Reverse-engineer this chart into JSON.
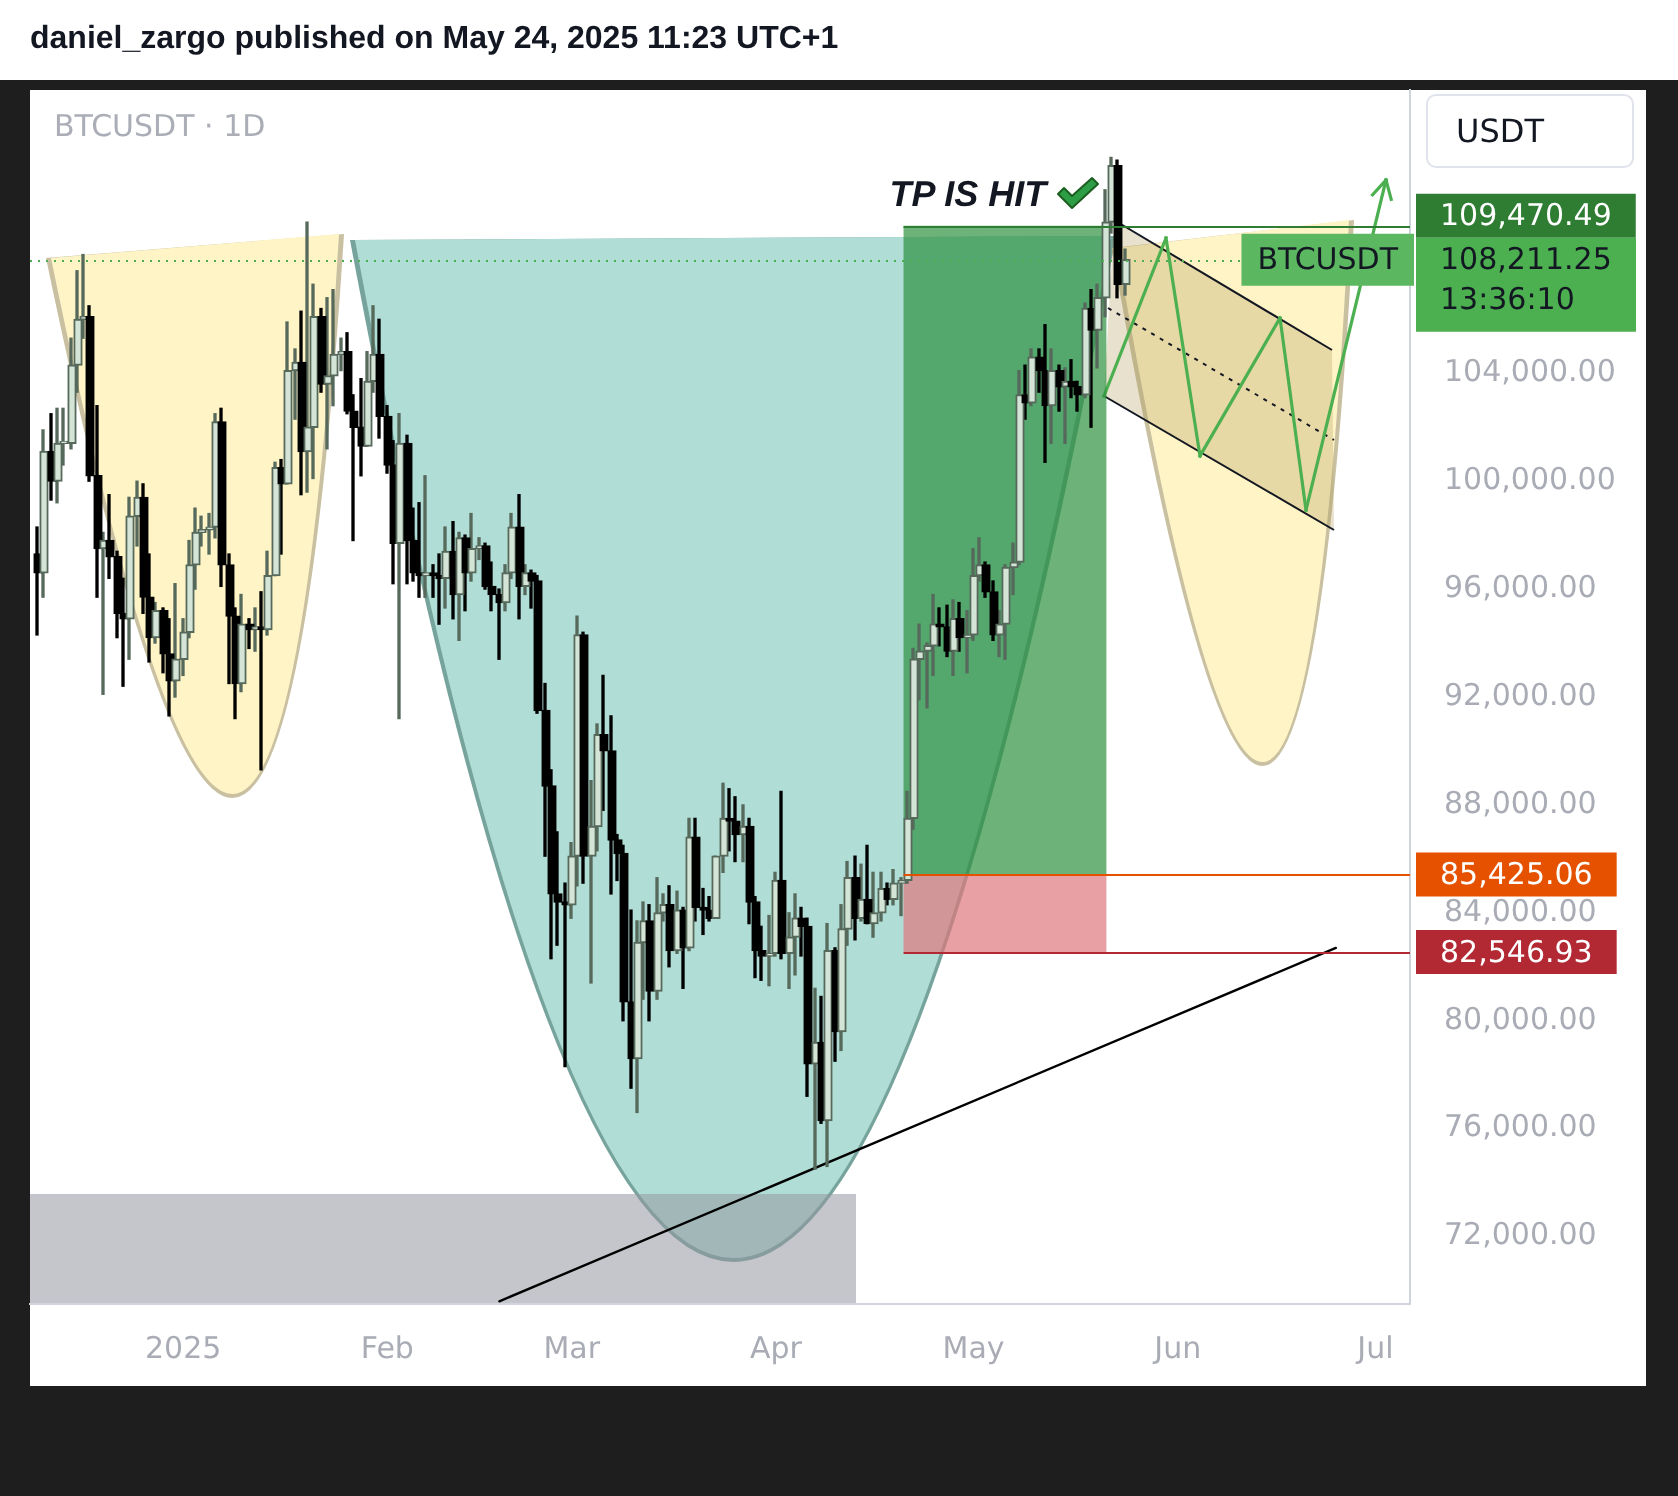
{
  "chart_data": {
    "type": "candlestick",
    "title": "BTCUSDT · 1D",
    "ylabel": "USDT",
    "annotations": [
      "TP IS HIT",
      "13:36:10",
      "daniel_zargo published on May 24, 2025 11:23 UTC+1"
    ],
    "series": [
      {
        "name": "BTCUSDT",
        "x": [
          "2024-12-10",
          "2024-12-11",
          "2024-12-12",
          "2024-12-13",
          "2024-12-14",
          "2024-12-15",
          "2024-12-16",
          "2024-12-17",
          "2024-12-18",
          "2024-12-19",
          "2024-12-20",
          "2024-12-21",
          "2024-12-22",
          "2024-12-23",
          "2024-12-24",
          "2024-12-25",
          "2024-12-26",
          "2024-12-27",
          "2024-12-28",
          "2024-12-29",
          "2024-12-30",
          "2024-12-31",
          "2025-01-01",
          "2025-01-02",
          "2025-01-03",
          "2025-01-04",
          "2025-01-05",
          "2025-01-06",
          "2025-01-07",
          "2025-01-08",
          "2025-01-09",
          "2025-01-10",
          "2025-01-11",
          "2025-01-12",
          "2025-01-13",
          "2025-01-14",
          "2025-01-15",
          "2025-01-16",
          "2025-01-17",
          "2025-01-18",
          "2025-01-19",
          "2025-01-20",
          "2025-01-21",
          "2025-01-22",
          "2025-01-23",
          "2025-01-24",
          "2025-01-25",
          "2025-01-26",
          "2025-01-27",
          "2025-01-28",
          "2025-01-29",
          "2025-01-30",
          "2025-01-31",
          "2025-02-01",
          "2025-02-02",
          "2025-02-03",
          "2025-02-04",
          "2025-02-05",
          "2025-02-06",
          "2025-02-07",
          "2025-02-08",
          "2025-02-09",
          "2025-02-10",
          "2025-02-11",
          "2025-02-12",
          "2025-02-13",
          "2025-02-14",
          "2025-02-15",
          "2025-02-16",
          "2025-02-17",
          "2025-02-18",
          "2025-02-19",
          "2025-02-20",
          "2025-02-21",
          "2025-02-22",
          "2025-02-23",
          "2025-02-24",
          "2025-02-25",
          "2025-02-26",
          "2025-02-27",
          "2025-02-28",
          "2025-03-01",
          "2025-03-02",
          "2025-03-03",
          "2025-03-04",
          "2025-03-05",
          "2025-03-06",
          "2025-03-07",
          "2025-03-08",
          "2025-03-09",
          "2025-03-10",
          "2025-03-11",
          "2025-03-12",
          "2025-03-13",
          "2025-03-14",
          "2025-03-15",
          "2025-03-16",
          "2025-03-17",
          "2025-03-18",
          "2025-03-19",
          "2025-03-20",
          "2025-03-21",
          "2025-03-22",
          "2025-03-23",
          "2025-03-24",
          "2025-03-25",
          "2025-03-26",
          "2025-03-27",
          "2025-03-28",
          "2025-03-29",
          "2025-03-30",
          "2025-03-31",
          "2025-04-01",
          "2025-04-02",
          "2025-04-03",
          "2025-04-04",
          "2025-04-05",
          "2025-04-06",
          "2025-04-07",
          "2025-04-08",
          "2025-04-09",
          "2025-04-10",
          "2025-04-11",
          "2025-04-12",
          "2025-04-13",
          "2025-04-14",
          "2025-04-15",
          "2025-04-16",
          "2025-04-17",
          "2025-04-18",
          "2025-04-19",
          "2025-04-20",
          "2025-04-21",
          "2025-04-22",
          "2025-04-23",
          "2025-04-24",
          "2025-04-25",
          "2025-04-26",
          "2025-04-27",
          "2025-04-28",
          "2025-04-29",
          "2025-04-30",
          "2025-05-01",
          "2025-05-02",
          "2025-05-03",
          "2025-05-04",
          "2025-05-05",
          "2025-05-06",
          "2025-05-07",
          "2025-05-08",
          "2025-05-09",
          "2025-05-10",
          "2025-05-11",
          "2025-05-12",
          "2025-05-13",
          "2025-05-14",
          "2025-05-15",
          "2025-05-16",
          "2025-05-17",
          "2025-05-18",
          "2025-05-19",
          "2025-05-20",
          "2025-05-21",
          "2025-05-22",
          "2025-05-23",
          "2025-05-24"
        ],
        "ohlc": [
          [
            97300,
            98300,
            94300,
            96600
          ],
          [
            96600,
            101900,
            95700,
            101100
          ],
          [
            101100,
            102500,
            99300,
            100000
          ],
          [
            100000,
            102700,
            99200,
            101400
          ],
          [
            101400,
            102700,
            100600,
            101400
          ],
          [
            101400,
            105300,
            101200,
            104300
          ],
          [
            104300,
            107800,
            103300,
            106000
          ],
          [
            106000,
            108400,
            105300,
            106100
          ],
          [
            106100,
            106500,
            100000,
            100200
          ],
          [
            100200,
            102800,
            95700,
            97500
          ],
          [
            97500,
            98100,
            92100,
            97800
          ],
          [
            97800,
            99500,
            96400,
            97200
          ],
          [
            97200,
            97400,
            94200,
            95100
          ],
          [
            95100,
            96400,
            92400,
            94900
          ],
          [
            94900,
            99400,
            93400,
            98700
          ],
          [
            98700,
            100000,
            97600,
            99400
          ],
          [
            99400,
            99900,
            95100,
            95700
          ],
          [
            95700,
            97300,
            93300,
            94200
          ],
          [
            94200,
            95500,
            94000,
            95200
          ],
          [
            95200,
            95300,
            92900,
            93600
          ],
          [
            93600,
            94900,
            91300,
            92600
          ],
          [
            92600,
            96200,
            92000,
            93400
          ],
          [
            93400,
            94900,
            92800,
            94400
          ],
          [
            94400,
            97800,
            94200,
            96900
          ],
          [
            96900,
            99000,
            96000,
            98100
          ],
          [
            98100,
            98700,
            97600,
            98200
          ],
          [
            98200,
            98800,
            97300,
            98300
          ],
          [
            98300,
            102500,
            97900,
            102200
          ],
          [
            102200,
            102700,
            96100,
            96900
          ],
          [
            96900,
            97300,
            92500,
            95000
          ],
          [
            95000,
            95300,
            91200,
            92500
          ],
          [
            92500,
            95800,
            92200,
            94700
          ],
          [
            94700,
            94900,
            93800,
            94500
          ],
          [
            94500,
            95300,
            93700,
            94600
          ],
          [
            94600,
            95900,
            89300,
            94500
          ],
          [
            94500,
            97400,
            94300,
            96500
          ],
          [
            96500,
            100700,
            96500,
            100500
          ],
          [
            100500,
            100800,
            97300,
            99900
          ],
          [
            99900,
            105900,
            99900,
            104100
          ],
          [
            104100,
            104900,
            102300,
            104400
          ],
          [
            104400,
            106300,
            99500,
            101100
          ],
          [
            101100,
            109600,
            99600,
            102000
          ],
          [
            102000,
            107300,
            100100,
            106100
          ],
          [
            106100,
            106400,
            103300,
            103600
          ],
          [
            103600,
            106800,
            101200,
            103900
          ],
          [
            103900,
            107100,
            102800,
            104700
          ],
          [
            104700,
            105300,
            104100,
            104800
          ],
          [
            104800,
            105500,
            102500,
            102600
          ],
          [
            102600,
            103200,
            97800,
            102000
          ],
          [
            102000,
            103800,
            100200,
            101300
          ],
          [
            101300,
            104800,
            101300,
            103700
          ],
          [
            103700,
            106500,
            103300,
            104700
          ],
          [
            104700,
            106000,
            101600,
            102400
          ],
          [
            102400,
            102800,
            100300,
            100600
          ],
          [
            100600,
            101500,
            96200,
            97700
          ],
          [
            97700,
            102500,
            91200,
            101400
          ],
          [
            101400,
            101700,
            96200,
            97800
          ],
          [
            97800,
            99000,
            96300,
            96600
          ],
          [
            96600,
            99200,
            95700,
            96500
          ],
          [
            96500,
            100200,
            95700,
            96600
          ],
          [
            96600,
            96900,
            95700,
            96500
          ],
          [
            96500,
            97300,
            94700,
            96400
          ],
          [
            96400,
            98300,
            95300,
            97400
          ],
          [
            97400,
            98500,
            94900,
            95800
          ],
          [
            95800,
            98100,
            94100,
            97900
          ],
          [
            97900,
            98000,
            95200,
            96600
          ],
          [
            96600,
            98800,
            96300,
            97500
          ],
          [
            97500,
            97900,
            97100,
            97600
          ],
          [
            97600,
            97700,
            96000,
            96100
          ],
          [
            96100,
            97000,
            95200,
            95800
          ],
          [
            95800,
            96000,
            93400,
            95500
          ],
          [
            95500,
            96900,
            95200,
            96600
          ],
          [
            96600,
            98800,
            96400,
            98300
          ],
          [
            98300,
            99500,
            94900,
            96100
          ],
          [
            96100,
            96900,
            95800,
            96600
          ],
          [
            96600,
            96700,
            95300,
            96300
          ],
          [
            96300,
            96500,
            91400,
            91500
          ],
          [
            91500,
            92500,
            86100,
            88700
          ],
          [
            88700,
            89300,
            82300,
            84700
          ],
          [
            84700,
            87000,
            82800,
            84400
          ],
          [
            84400,
            85100,
            78300,
            84300
          ],
          [
            84300,
            86600,
            83800,
            86100
          ],
          [
            86100,
            95000,
            85000,
            94300
          ],
          [
            94300,
            94400,
            85100,
            86100
          ],
          [
            86100,
            88900,
            81400,
            87200
          ],
          [
            87200,
            91000,
            86300,
            90600
          ],
          [
            90600,
            92800,
            87800,
            90000
          ],
          [
            90000,
            91300,
            84700,
            86700
          ],
          [
            86700,
            86900,
            85200,
            86200
          ],
          [
            86200,
            86500,
            80000,
            80700
          ],
          [
            80700,
            84100,
            77500,
            78600
          ],
          [
            78600,
            83700,
            76600,
            82900
          ],
          [
            82900,
            84400,
            80800,
            83700
          ],
          [
            83700,
            84300,
            80000,
            81100
          ],
          [
            81100,
            85300,
            80800,
            84000
          ],
          [
            84000,
            84700,
            83700,
            84300
          ],
          [
            84300,
            85000,
            82000,
            82600
          ],
          [
            82600,
            84800,
            82500,
            84100
          ],
          [
            84100,
            84200,
            81200,
            82700
          ],
          [
            82700,
            87500,
            82600,
            86800
          ],
          [
            86800,
            87500,
            83700,
            84200
          ],
          [
            84200,
            84900,
            83200,
            84100
          ],
          [
            84100,
            84600,
            83700,
            83800
          ],
          [
            83800,
            86100,
            83800,
            86100
          ],
          [
            86100,
            88800,
            85500,
            87500
          ],
          [
            87500,
            88600,
            86300,
            87400
          ],
          [
            87400,
            88300,
            85900,
            86900
          ],
          [
            86900,
            88000,
            85900,
            87200
          ],
          [
            87200,
            87500,
            83600,
            84400
          ],
          [
            84400,
            84600,
            81600,
            82600
          ],
          [
            82600,
            83500,
            81500,
            82400
          ],
          [
            82400,
            83900,
            81300,
            82500
          ],
          [
            82500,
            85500,
            82400,
            85200
          ],
          [
            85200,
            88500,
            82300,
            82500
          ],
          [
            82500,
            84000,
            81200,
            83100
          ],
          [
            83100,
            84700,
            81700,
            83800
          ],
          [
            83800,
            84200,
            82400,
            83500
          ],
          [
            83500,
            83800,
            77200,
            78400
          ],
          [
            78400,
            81200,
            74500,
            79200
          ],
          [
            79200,
            80900,
            76200,
            76300
          ],
          [
            76300,
            83600,
            74600,
            82600
          ],
          [
            82600,
            82700,
            78500,
            79600
          ],
          [
            79600,
            84300,
            78900,
            83400
          ],
          [
            83400,
            85900,
            82800,
            85300
          ],
          [
            85300,
            86100,
            83000,
            83800
          ],
          [
            83800,
            85800,
            83700,
            84500
          ],
          [
            84500,
            86500,
            83600,
            83600
          ],
          [
            83600,
            85500,
            83100,
            84000
          ],
          [
            84000,
            85500,
            83700,
            84900
          ],
          [
            84900,
            85100,
            84300,
            84500
          ],
          [
            84500,
            85600,
            84300,
            85100
          ],
          [
            85100,
            85300,
            83900,
            85200
          ],
          [
            85200,
            88500,
            85100,
            87500
          ],
          [
            87500,
            93800,
            87100,
            93400
          ],
          [
            93400,
            94700,
            91900,
            93700
          ],
          [
            93700,
            94000,
            91600,
            93900
          ],
          [
            93900,
            95800,
            92800,
            94700
          ],
          [
            94700,
            95300,
            93900,
            94600
          ],
          [
            94600,
            95400,
            93500,
            93700
          ],
          [
            93700,
            95600,
            92800,
            94900
          ],
          [
            94900,
            95500,
            93700,
            94200
          ],
          [
            94200,
            95200,
            92900,
            94300
          ],
          [
            94300,
            97500,
            94100,
            96500
          ],
          [
            96500,
            97900,
            96300,
            96900
          ],
          [
            96900,
            97000,
            95700,
            95900
          ],
          [
            95900,
            96300,
            94100,
            94300
          ],
          [
            94300,
            95200,
            93500,
            94700
          ],
          [
            94700,
            96900,
            93400,
            96800
          ],
          [
            96800,
            97700,
            95800,
            97000
          ],
          [
            97000,
            104100,
            96900,
            103200
          ],
          [
            103200,
            104300,
            102300,
            102900
          ],
          [
            102900,
            104900,
            102800,
            104600
          ],
          [
            104600,
            104900,
            103300,
            104100
          ],
          [
            104100,
            105800,
            100700,
            102800
          ],
          [
            102800,
            104900,
            101400,
            104100
          ],
          [
            104100,
            104300,
            102600,
            103500
          ],
          [
            103500,
            104200,
            101400,
            103700
          ],
          [
            103700,
            104500,
            103100,
            103500
          ],
          [
            103500,
            103700,
            102600,
            103200
          ],
          [
            103200,
            106600,
            103100,
            106400
          ],
          [
            106400,
            107100,
            102000,
            105600
          ],
          [
            105600,
            107300,
            104200,
            106800
          ],
          [
            106800,
            110800,
            106100,
            109600
          ],
          [
            109600,
            112000,
            109200,
            111700
          ],
          [
            111700,
            111900,
            106800,
            107300
          ],
          [
            107300,
            108600,
            106900,
            108211.25
          ]
        ]
      },
      {
        "type": "line",
        "x": [
          "2025-02-18",
          "2025-06-25"
        ],
        "values": [
          69600,
          82700
        ],
        "color": "#000000"
      }
    ],
    "xlim": [
      "2024-12-08T18:00",
      "2025-07-06T06:00"
    ],
    "xticks": [
      {
        "value": "2025-01-01",
        "label": "2025"
      },
      {
        "value": "2025-02-01",
        "label": "Feb"
      },
      {
        "value": "2025-03-01",
        "label": "Mar"
      },
      {
        "value": "2025-04-01",
        "label": "Apr"
      },
      {
        "value": "2025-05-01",
        "label": "May"
      },
      {
        "value": "2025-06-01",
        "label": "Jun"
      },
      {
        "value": "2025-07-01",
        "label": "Jul"
      }
    ],
    "ylim": [
      69500,
      114500
    ],
    "yticks": [
      {
        "value": 72000,
        "label": "72,000.00"
      },
      {
        "value": 76000,
        "label": "76,000.00"
      },
      {
        "value": 80000,
        "label": "80,000.00"
      },
      {
        "value": 84000,
        "label": "84,000.00"
      },
      {
        "value": 88000,
        "label": "88,000.00"
      },
      {
        "value": 92000,
        "label": "92,000.00"
      },
      {
        "value": 96000,
        "label": "96,000.00"
      },
      {
        "value": 100000,
        "label": "100,000.00"
      },
      {
        "value": 104000,
        "label": "104,000.00"
      }
    ],
    "ref_lines": [
      {
        "axis": "y",
        "value": 109470.49,
        "label": "109,470.49",
        "color": "#2e7d32"
      },
      {
        "axis": "y",
        "value": 108211.25,
        "label": "108,211.25",
        "color": "#4caf50",
        "line_style": "dotted"
      },
      {
        "axis": "y",
        "value": 85425.06,
        "label": "85,425.06",
        "color": "#e65100"
      },
      {
        "axis": "y",
        "value": 82546.93,
        "label": "82,546.93",
        "color": "#b22833"
      }
    ],
    "bands": [
      {
        "axis": "y",
        "from": 85425.06,
        "to": 109470.49,
        "color": "#2e9140"
      },
      {
        "axis": "y",
        "from": 82546.93,
        "to": 85425.06,
        "color": "#de777e"
      }
    ]
  }
}
